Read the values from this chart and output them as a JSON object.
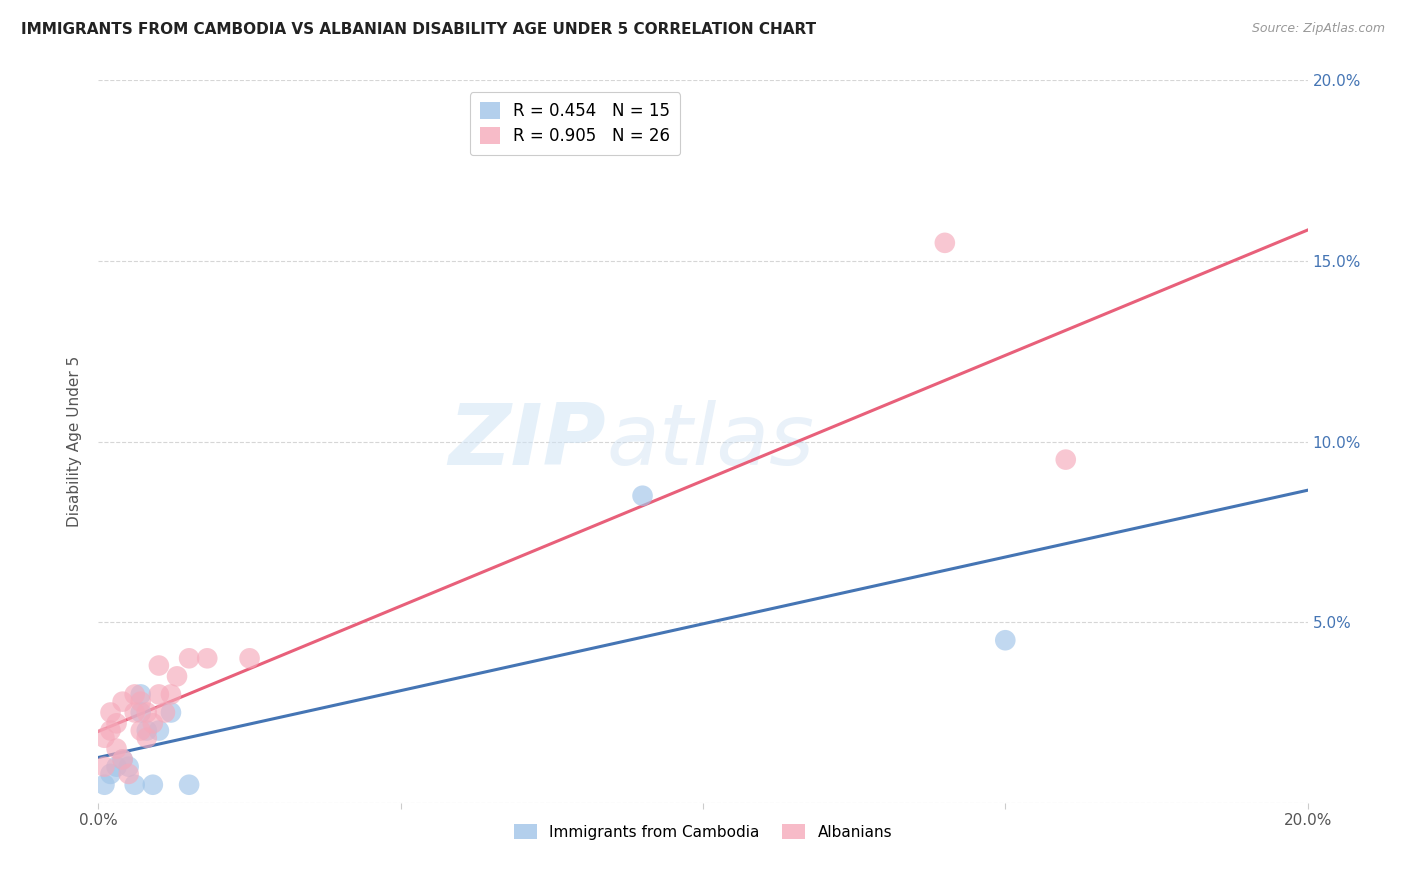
{
  "title": "IMMIGRANTS FROM CAMBODIA VS ALBANIAN DISABILITY AGE UNDER 5 CORRELATION CHART",
  "source": "Source: ZipAtlas.com",
  "ylabel": "Disability Age Under 5",
  "xlim": [
    0.0,
    0.2
  ],
  "ylim": [
    0.0,
    0.2
  ],
  "watermark_text": "ZIPatlas",
  "cambodia_color": "#a0c4e8",
  "albanian_color": "#f5aabb",
  "cambodia_line_color": "#4575b4",
  "albanian_line_color": "#e8607a",
  "background_color": "#ffffff",
  "grid_color": "#cccccc",
  "title_color": "#222222",
  "title_fontsize": 11,
  "cambodia_x": [
    0.001,
    0.002,
    0.003,
    0.004,
    0.005,
    0.006,
    0.007,
    0.007,
    0.008,
    0.009,
    0.01,
    0.012,
    0.015,
    0.09,
    0.15
  ],
  "cambodia_y": [
    0.005,
    0.008,
    0.01,
    0.012,
    0.01,
    0.005,
    0.03,
    0.025,
    0.02,
    0.005,
    0.02,
    0.025,
    0.005,
    0.085,
    0.045
  ],
  "albanian_x": [
    0.001,
    0.001,
    0.002,
    0.002,
    0.003,
    0.003,
    0.004,
    0.004,
    0.005,
    0.006,
    0.006,
    0.007,
    0.007,
    0.008,
    0.008,
    0.009,
    0.01,
    0.01,
    0.011,
    0.012,
    0.013,
    0.015,
    0.018,
    0.025,
    0.14,
    0.16
  ],
  "albanian_y": [
    0.01,
    0.018,
    0.02,
    0.025,
    0.015,
    0.022,
    0.012,
    0.028,
    0.008,
    0.025,
    0.03,
    0.02,
    0.028,
    0.018,
    0.025,
    0.022,
    0.03,
    0.038,
    0.025,
    0.03,
    0.035,
    0.04,
    0.04,
    0.04,
    0.155,
    0.095
  ]
}
